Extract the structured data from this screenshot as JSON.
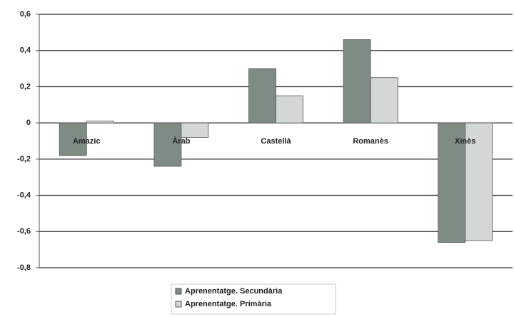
{
  "chart_data": {
    "type": "bar",
    "categories": [
      "Amazic",
      "Àrab",
      "Castellà",
      "Romanès",
      "Xinès"
    ],
    "series": [
      {
        "name": "Aprenentatge. Secundària",
        "color": "#7f8c84",
        "values": [
          -0.18,
          -0.24,
          0.3,
          0.46,
          -0.66
        ]
      },
      {
        "name": "Aprenentatge. Primària",
        "color": "#d3d8d4",
        "values": [
          0.01,
          -0.08,
          0.15,
          0.25,
          -0.65
        ]
      }
    ],
    "ylim": [
      -0.8,
      0.6
    ],
    "yticks": [
      {
        "value": -0.8,
        "label": "-0,8"
      },
      {
        "value": -0.6,
        "label": "-0,6"
      },
      {
        "value": -0.4,
        "label": "-0,4"
      },
      {
        "value": -0.2,
        "label": "-0,2"
      },
      0,
      {
        "value": 0.2,
        "label": "0,2"
      },
      {
        "value": 0.4,
        "label": "0,4"
      },
      {
        "value": 0.6,
        "label": "0,6"
      }
    ],
    "grid": true,
    "legend": "bottom"
  }
}
